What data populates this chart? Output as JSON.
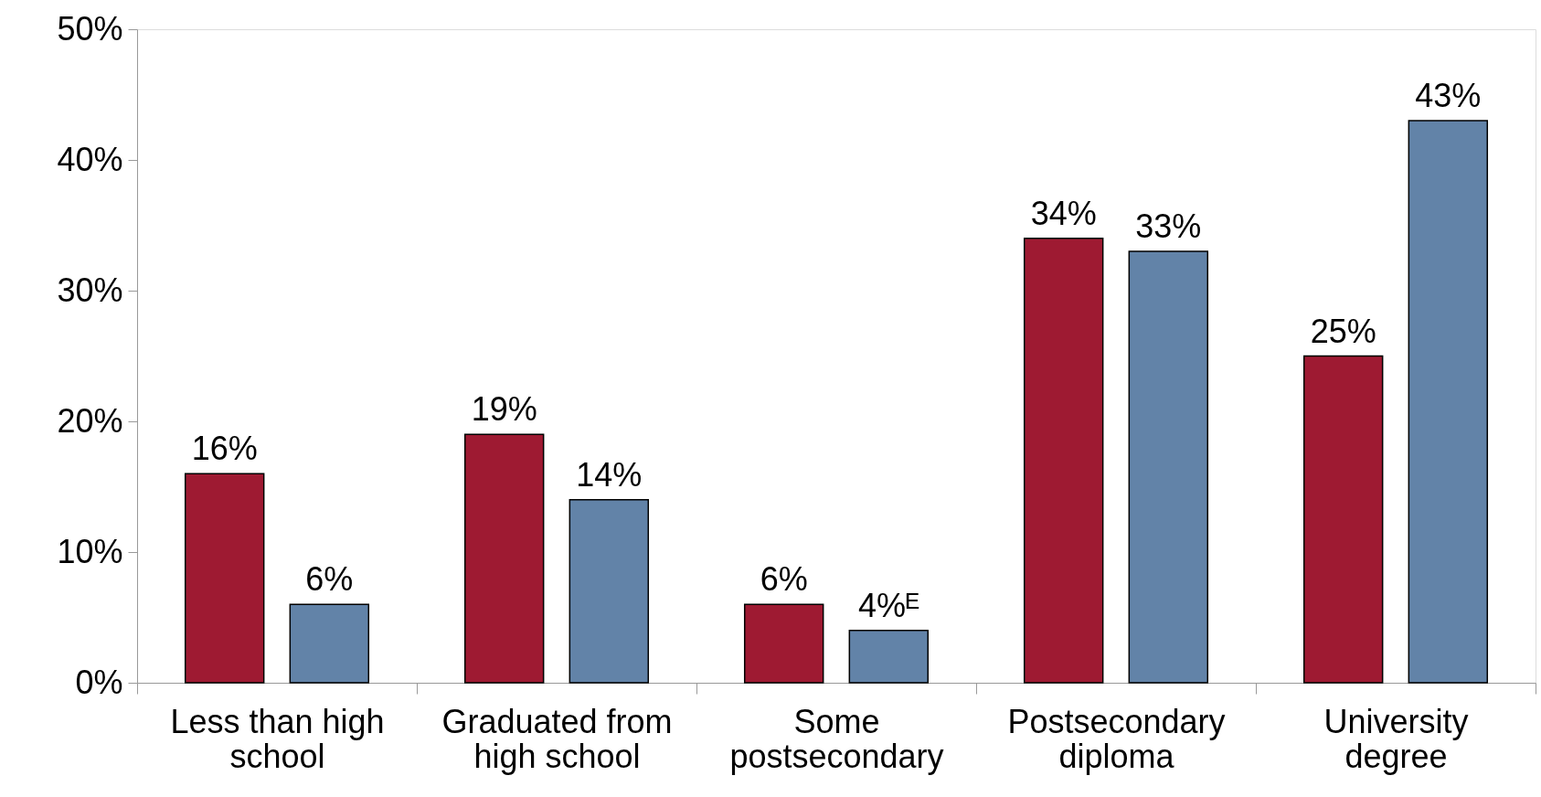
{
  "chart_data": {
    "type": "bar",
    "categories": [
      "Less than high school",
      "Graduated from high school",
      "Some postsecondary",
      "Postsecondary diploma",
      "University degree"
    ],
    "series": [
      {
        "color": "#9e1a32",
        "values": [
          16,
          19,
          6,
          34,
          25
        ],
        "value_labels": [
          "16%",
          "19%",
          "6%",
          "34%",
          "25%"
        ]
      },
      {
        "color": "#6283a8",
        "values": [
          6,
          14,
          4,
          33,
          43
        ],
        "value_labels": [
          "6%",
          "14%",
          "4%ᴱ",
          "33%",
          "43%"
        ]
      }
    ],
    "ylim": [
      0,
      50
    ],
    "yticks": [
      {
        "value": 0,
        "label": "0%"
      },
      {
        "value": 10,
        "label": "10%"
      },
      {
        "value": 20,
        "label": "20%"
      },
      {
        "value": 30,
        "label": "30%"
      },
      {
        "value": 40,
        "label": "40%"
      },
      {
        "value": 50,
        "label": "50%"
      }
    ],
    "grid": false
  }
}
